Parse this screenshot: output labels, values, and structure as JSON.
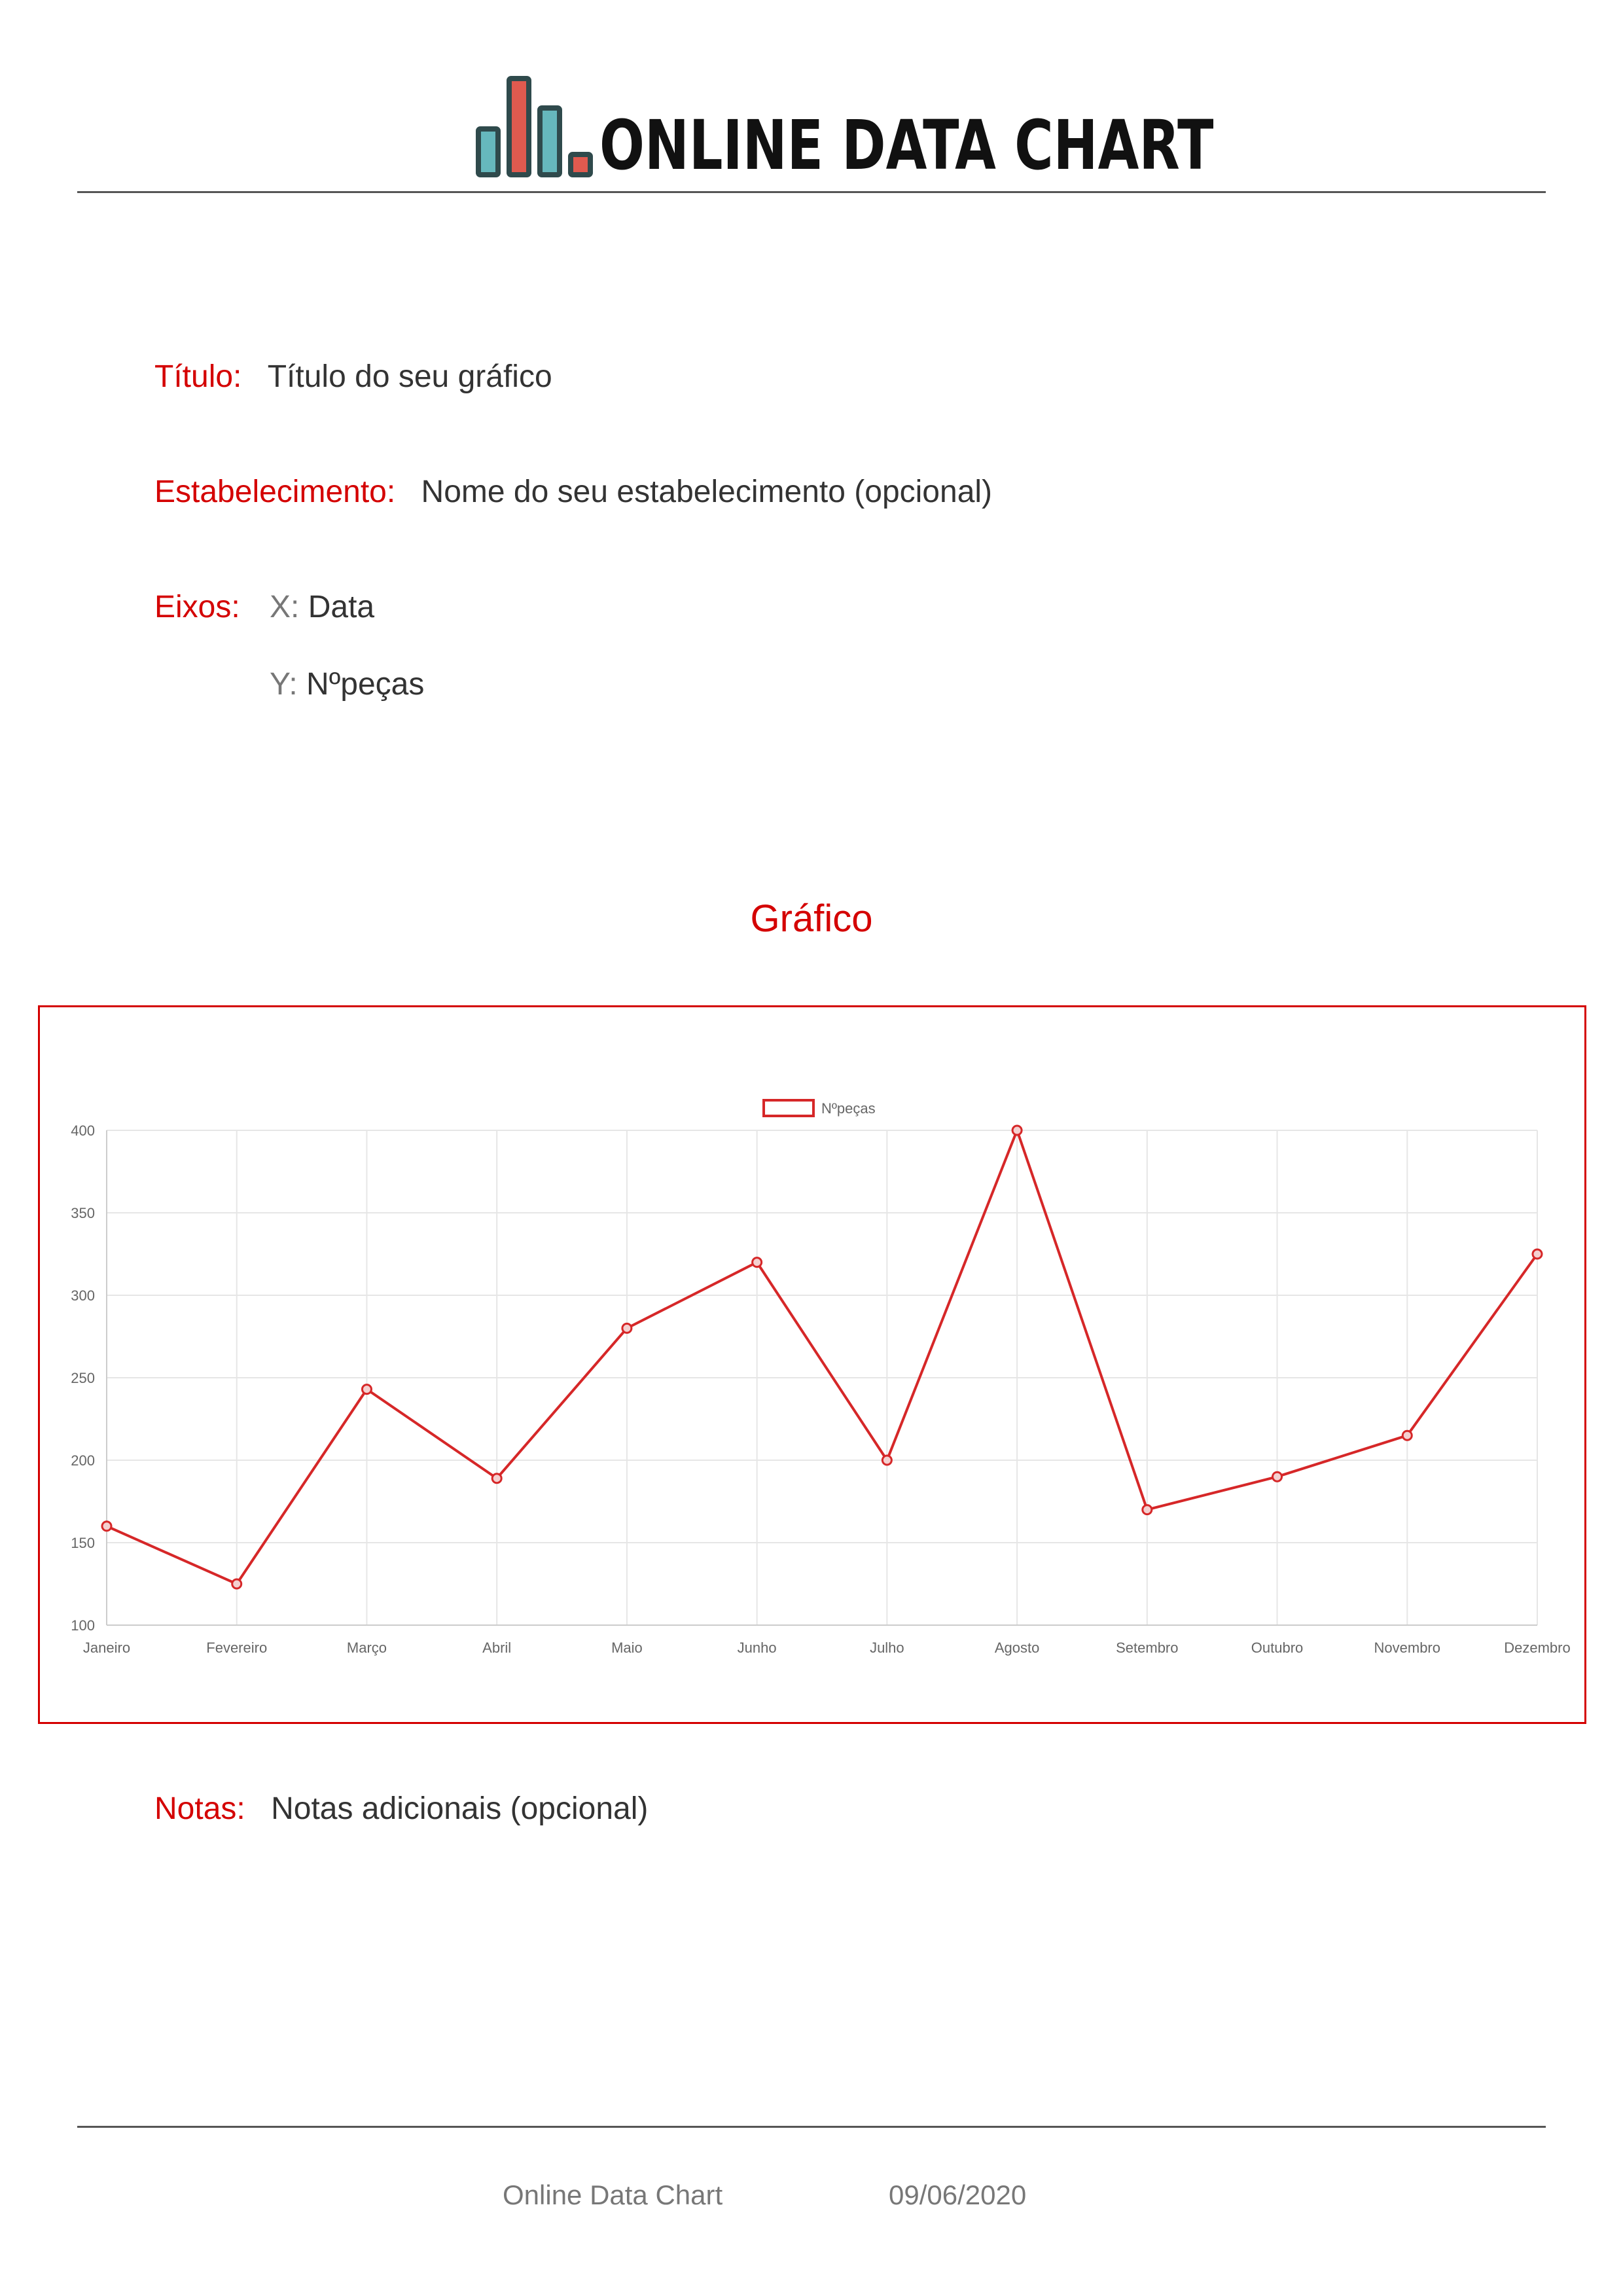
{
  "header": {
    "logo_text": "ONLINE DATA CHART",
    "logo_colors": {
      "teal": "#66b8bd",
      "red": "#e05a4f",
      "outline": "#2f4a4c"
    }
  },
  "fields": {
    "titulo_label": "Título:",
    "titulo_value": "Título do seu gráfico",
    "estabelecimento_label": "Estabelecimento:",
    "estabelecimento_value": "Nome do seu estabelecimento (opcional)",
    "eixos_label": "Eixos:",
    "x_key": "X:",
    "x_value": "Data",
    "y_key": "Y:",
    "y_value": "Nºpeças"
  },
  "section_title": "Gráfico",
  "chart_data": {
    "type": "line",
    "categories": [
      "Janeiro",
      "Fevereiro",
      "Março",
      "Abril",
      "Maio",
      "Junho",
      "Julho",
      "Agosto",
      "Setembro",
      "Outubro",
      "Novembro",
      "Dezembro"
    ],
    "series": [
      {
        "name": "Nºpeças",
        "values": [
          160,
          125,
          243,
          189,
          280,
          320,
          200,
          400,
          170,
          190,
          215,
          325
        ],
        "color": "#d62728"
      }
    ],
    "ylim": [
      100,
      400
    ],
    "yticks": [
      100,
      150,
      200,
      250,
      300,
      350,
      400
    ],
    "grid": true,
    "legend": "top-center"
  },
  "notes": {
    "label": "Notas:",
    "value": "Notas adicionais (opcional)"
  },
  "footer": {
    "left": "Online Data Chart",
    "right": "09/06/2020"
  }
}
